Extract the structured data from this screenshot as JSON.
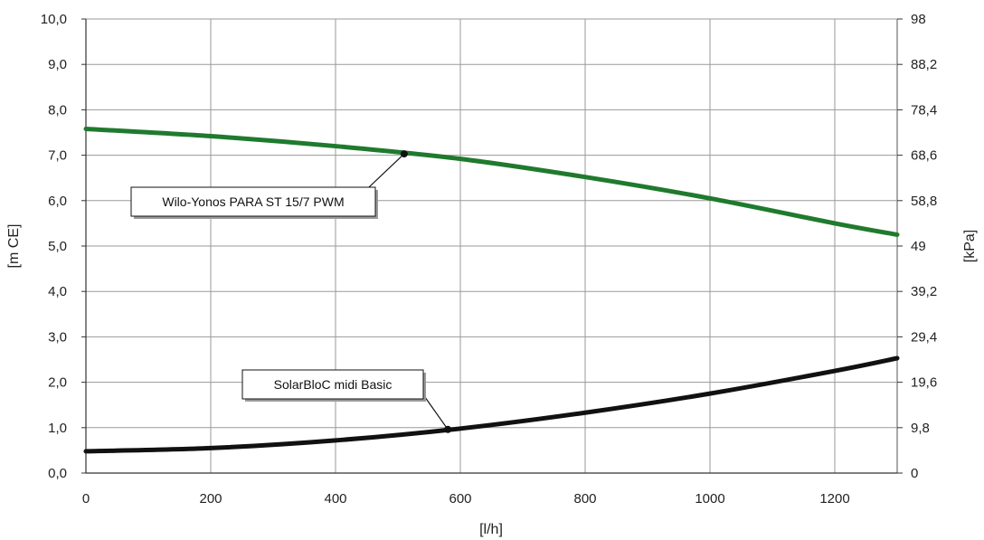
{
  "chart_data": {
    "type": "line",
    "xlabel": "[l/h]",
    "ylabel": "[m CE]",
    "y2label": "[kPa]",
    "xlim": [
      0,
      1300
    ],
    "ylim": [
      0,
      10
    ],
    "y2lim": [
      0,
      98
    ],
    "x_ticks": [
      "0",
      "200",
      "400",
      "600",
      "800",
      "1000",
      "1200"
    ],
    "y_ticks": [
      "0,0",
      "1,0",
      "2,0",
      "3,0",
      "4,0",
      "5,0",
      "6,0",
      "7,0",
      "8,0",
      "9,0",
      "10,0"
    ],
    "y2_ticks": [
      "0",
      "9,8",
      "19,6",
      "29,4",
      "39,2",
      "49",
      "58,8",
      "68,6",
      "78,4",
      "88,2",
      "98"
    ],
    "grid": true,
    "series": [
      {
        "name": "Wilo-Yonos PARA ST 15/7 PWM",
        "color": "#1f7a2e",
        "x": [
          0,
          200,
          400,
          600,
          800,
          1000,
          1200,
          1300
        ],
        "y": [
          7.58,
          7.42,
          7.2,
          6.92,
          6.52,
          6.05,
          5.5,
          5.25
        ]
      },
      {
        "name": "SolarBloC midi Basic",
        "color": "#111111",
        "x": [
          0,
          200,
          400,
          600,
          800,
          1000,
          1200,
          1300
        ],
        "y": [
          0.48,
          0.55,
          0.72,
          0.98,
          1.33,
          1.75,
          2.25,
          2.53
        ]
      }
    ],
    "annotations": [
      {
        "label": "Wilo-Yonos PARA ST 15/7 PWM",
        "point_x": 510,
        "point_y": 7.03
      },
      {
        "label": "SolarBloC midi Basic",
        "point_x": 580,
        "point_y": 0.96
      }
    ]
  }
}
